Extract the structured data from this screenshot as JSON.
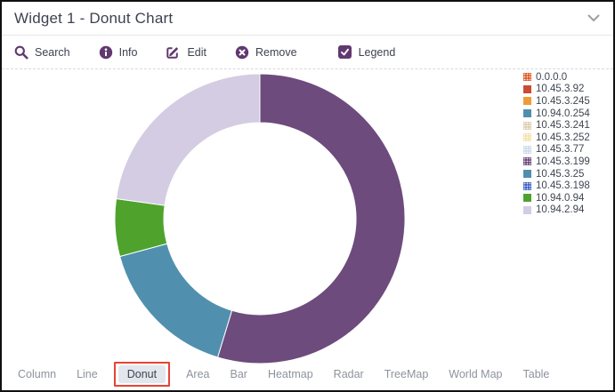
{
  "window": {
    "title": "Widget 1 - Donut Chart"
  },
  "toolbar": {
    "search_label": "Search",
    "info_label": "Info",
    "edit_label": "Edit",
    "remove_label": "Remove",
    "legend_label": "Legend",
    "legend_checked": true,
    "icon_color": "#61386f"
  },
  "chart_data": {
    "type": "pie",
    "variant": "donut",
    "title": "Widget 1 - Donut Chart",
    "start_angle_deg": 0,
    "direction": "clockwise",
    "inner_radius_ratio": 0.66,
    "legend_position": "right",
    "segments": [
      {
        "label": "10.45.3.199",
        "color": "#6d4b7d",
        "percent": 54.7
      },
      {
        "label": "10.45.3.25",
        "color": "#5090ae",
        "percent": 16.1
      },
      {
        "label": "10.94.0.94",
        "color": "#4fa32d",
        "percent": 6.4
      },
      {
        "label": "10.94.2.94",
        "color": "#d3cce2",
        "percent": 22.8
      }
    ],
    "legend": [
      {
        "label": "0.0.0.0",
        "color": "#e35926",
        "pattern": true
      },
      {
        "label": "10.45.3.92",
        "color": "#c94d33",
        "pattern": false
      },
      {
        "label": "10.45.3.245",
        "color": "#ef9c38",
        "pattern": false
      },
      {
        "label": "10.94.0.254",
        "color": "#4f8fae",
        "pattern": false
      },
      {
        "label": "10.45.3.241",
        "color": "#ddd0b0",
        "pattern": true
      },
      {
        "label": "10.45.3.252",
        "color": "#f3e2ae",
        "pattern": true
      },
      {
        "label": "10.45.3.77",
        "color": "#cadcea",
        "pattern": true
      },
      {
        "label": "10.45.3.199",
        "color": "#6d4b7d",
        "pattern": true
      },
      {
        "label": "10.45.3.25",
        "color": "#4f8fae",
        "pattern": false
      },
      {
        "label": "10.45.3.198",
        "color": "#4066c4",
        "pattern": true
      },
      {
        "label": "10.94.0.94",
        "color": "#4fa32d",
        "pattern": false
      },
      {
        "label": "10.94.2.94",
        "color": "#d3cce2",
        "pattern": false
      }
    ]
  },
  "tabs": {
    "items": [
      "Column",
      "Line",
      "Donut",
      "Area",
      "Bar",
      "Heatmap",
      "Radar",
      "TreeMap",
      "World Map",
      "Table"
    ],
    "selected": "Donut",
    "highlight_color": "#e64334"
  }
}
